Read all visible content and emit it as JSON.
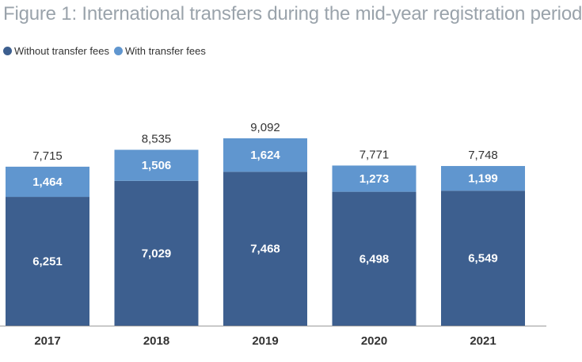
{
  "title": "Figure 1: International transfers during the mid-year registration period",
  "colors": {
    "without": "#3d5f8f",
    "with": "#6096cf",
    "axis": "#9a9a9a"
  },
  "chart_data": {
    "type": "bar",
    "stacked": true,
    "title": "Figure 1: International transfers during the mid-year registration period",
    "categories": [
      "2017",
      "2018",
      "2019",
      "2020",
      "2021"
    ],
    "series": [
      {
        "name": "Without transfer fees",
        "values": [
          6251,
          7029,
          7468,
          6498,
          6549
        ]
      },
      {
        "name": "With transfer fees",
        "values": [
          1464,
          1506,
          1624,
          1273,
          1199
        ]
      }
    ],
    "totals": [
      7715,
      8535,
      9092,
      7771,
      7748
    ],
    "labels": {
      "without": [
        "6,251",
        "7,029",
        "7,468",
        "6,498",
        "6,549"
      ],
      "with": [
        "1,464",
        "1,506",
        "1,624",
        "1,273",
        "1,199"
      ],
      "totals": [
        "7,715",
        "8,535",
        "9,092",
        "7,771",
        "7,748"
      ]
    },
    "legend_position": "top-left",
    "grid": false
  }
}
